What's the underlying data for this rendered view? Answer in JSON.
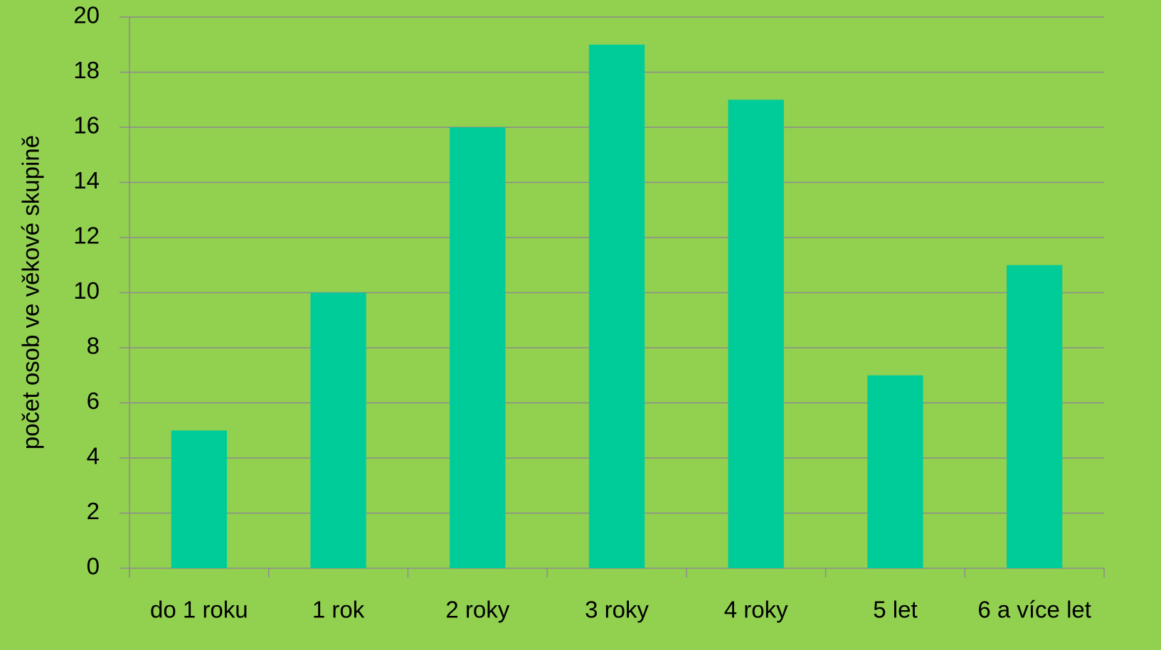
{
  "chart_data": {
    "type": "bar",
    "y_label": "počet osob ve věkové skupině",
    "categories": [
      "do 1 roku",
      "1 rok",
      "2 roky",
      "3 roky",
      "4 roky",
      "5 let",
      "6 a více let"
    ],
    "values": [
      5,
      10,
      16,
      19,
      17,
      7,
      11
    ],
    "color": "#00cc99",
    "ylim": [
      0,
      20
    ],
    "yticks": [
      0,
      2,
      4,
      6,
      8,
      10,
      12,
      14,
      16,
      18,
      20
    ],
    "grid": true
  }
}
